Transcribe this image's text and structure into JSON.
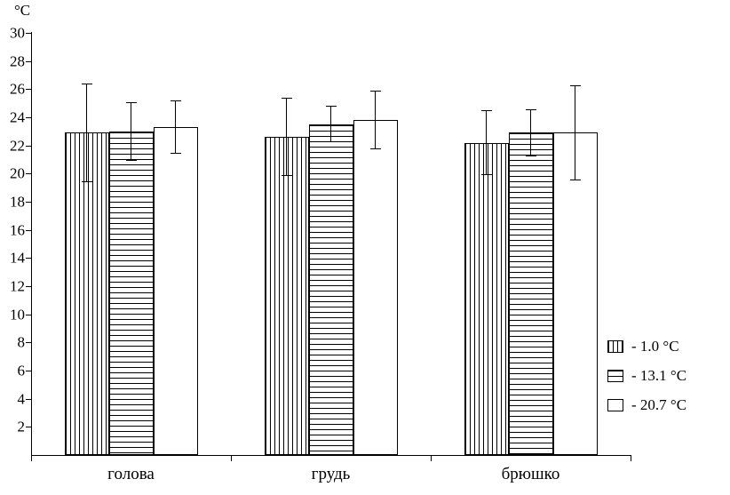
{
  "chart_data": {
    "type": "bar",
    "ylabel": "°C",
    "categories": [
      "голова",
      "грудь",
      "брюшко"
    ],
    "series": [
      {
        "name": "- 1.0  °C",
        "pattern": "vertical-lines",
        "values": [
          22.9,
          22.6,
          22.2
        ],
        "errors": [
          3.5,
          2.8,
          2.3
        ]
      },
      {
        "name": "- 13.1  °C",
        "pattern": "horizontal-lines",
        "values": [
          23.0,
          23.5,
          22.9
        ],
        "errors": [
          2.1,
          1.3,
          1.7
        ]
      },
      {
        "name": "- 20.7  °C",
        "pattern": "white",
        "values": [
          23.3,
          23.8,
          22.9
        ],
        "errors": [
          1.9,
          2.1,
          3.4
        ]
      }
    ],
    "ylim": [
      0,
      30
    ],
    "ytick_step": 2,
    "grid": false,
    "legend_position": "right",
    "error_bars": true,
    "colors": {
      "axis": "#000000",
      "bar_border": "#000000",
      "bar_fill": "#ffffff"
    }
  }
}
